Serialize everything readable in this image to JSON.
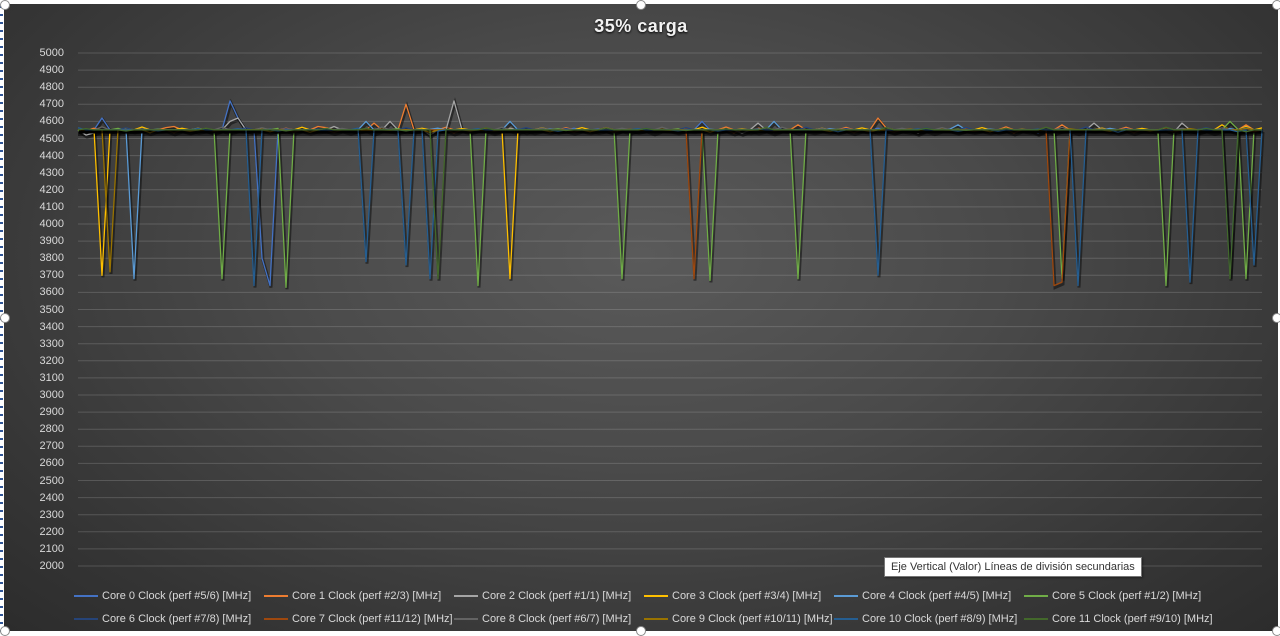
{
  "chart": {
    "title": "35% carga",
    "tooltip": "Eje Vertical (Valor)  Líneas de división secundarias",
    "y_ticks": [
      "5000",
      "4900",
      "4800",
      "4700",
      "4600",
      "4500",
      "4400",
      "4300",
      "4200",
      "4100",
      "4000",
      "3900",
      "3800",
      "3700",
      "3600",
      "3500",
      "3400",
      "3300",
      "3200",
      "3100",
      "3000",
      "2900",
      "2800",
      "2700",
      "2600",
      "2500",
      "2400",
      "2300",
      "2200",
      "2100",
      "2000"
    ],
    "legend": [
      {
        "label": "Core 0 Clock (perf #5/6) [MHz]",
        "color": "#4472c4"
      },
      {
        "label": "Core 1 Clock (perf #2/3) [MHz]",
        "color": "#ed7d31"
      },
      {
        "label": "Core 2 Clock (perf #1/1) [MHz]",
        "color": "#a5a5a5"
      },
      {
        "label": "Core 3 Clock (perf #3/4) [MHz]",
        "color": "#ffc000"
      },
      {
        "label": "Core 4 Clock (perf #4/5) [MHz]",
        "color": "#5b9bd5"
      },
      {
        "label": "Core 5 Clock (perf #1/2) [MHz]",
        "color": "#70ad47"
      },
      {
        "label": "Core 6 Clock (perf #7/8) [MHz]",
        "color": "#264478"
      },
      {
        "label": "Core 7 Clock (perf #11/12) [MHz]",
        "color": "#9e480e"
      },
      {
        "label": "Core 8 Clock (perf #6/7) [MHz]",
        "color": "#636363"
      },
      {
        "label": "Core 9 Clock (perf #10/11) [MHz]",
        "color": "#997300"
      },
      {
        "label": "Core 10 Clock (perf #8/9) [MHz]",
        "color": "#255e91"
      },
      {
        "label": "Core 11 Clock (perf #9/10) [MHz]",
        "color": "#43682b"
      }
    ]
  },
  "chart_data": {
    "type": "line",
    "title": "35% carga",
    "xlabel": "",
    "ylabel": "",
    "ylim": [
      2000,
      5000
    ],
    "y_tick_step": 100,
    "grid": true,
    "legend_position": "bottom",
    "n_points": 149,
    "baseline_mhz": 4550,
    "series": [
      {
        "name": "Core 0 Clock (perf #5/6) [MHz]",
        "events": [
          [
            3,
            4620
          ],
          [
            19,
            4720
          ],
          [
            20,
            4620
          ],
          [
            23,
            3800
          ],
          [
            24,
            3640
          ],
          [
            62,
            4560
          ],
          [
            78,
            4600
          ],
          [
            100,
            4560
          ],
          [
            120,
            4530
          ]
        ]
      },
      {
        "name": "Core 1 Clock (perf #2/3) [MHz]",
        "events": [
          [
            2,
            4560
          ],
          [
            12,
            4570
          ],
          [
            30,
            4570
          ],
          [
            37,
            4590
          ],
          [
            41,
            4700
          ],
          [
            85,
            4560
          ],
          [
            90,
            4580
          ],
          [
            100,
            4620
          ],
          [
            123,
            4580
          ],
          [
            146,
            4580
          ]
        ]
      },
      {
        "name": "Core 2 Clock (perf #1/1) [MHz]",
        "events": [
          [
            1,
            4520
          ],
          [
            19,
            4600
          ],
          [
            20,
            4620
          ],
          [
            32,
            4570
          ],
          [
            39,
            4600
          ],
          [
            47,
            4720
          ],
          [
            54,
            4560
          ],
          [
            85,
            4590
          ],
          [
            105,
            4530
          ],
          [
            127,
            4590
          ],
          [
            138,
            4590
          ]
        ]
      },
      {
        "name": "Core 3 Clock (perf #3/4) [MHz]",
        "events": [
          [
            3,
            3700
          ],
          [
            6,
            4560
          ],
          [
            15,
            4560
          ],
          [
            43,
            4560
          ],
          [
            54,
            3680
          ],
          [
            56,
            4540
          ],
          [
            93,
            4560
          ],
          [
            143,
            4580
          ],
          [
            146,
            4570
          ]
        ]
      },
      {
        "name": "Core 4 Clock (perf #4/5) [MHz]",
        "events": [
          [
            7,
            3680
          ],
          [
            36,
            4600
          ],
          [
            45,
            4560
          ],
          [
            54,
            4600
          ],
          [
            87,
            4600
          ],
          [
            96,
            4550
          ],
          [
            110,
            4580
          ]
        ]
      },
      {
        "name": "Core 5 Clock (perf #1/2) [MHz]",
        "events": [
          [
            18,
            3680
          ],
          [
            26,
            3630
          ],
          [
            50,
            3640
          ],
          [
            68,
            3680
          ],
          [
            79,
            4720
          ],
          [
            79,
            3670
          ],
          [
            90,
            3680
          ],
          [
            123,
            3680
          ],
          [
            136,
            3640
          ],
          [
            146,
            3680
          ],
          [
            144,
            4600
          ]
        ]
      },
      {
        "name": "Core 6 Clock (perf #7/8) [MHz]",
        "events": [
          [
            144,
            3690
          ],
          [
            145,
            4550
          ]
        ]
      },
      {
        "name": "Core 7 Clock (perf #11/12) [MHz]",
        "events": [
          [
            77,
            3680
          ],
          [
            122,
            3640
          ],
          [
            123,
            3660
          ]
        ]
      },
      {
        "name": "Core 8 Clock (perf #6/7) [MHz]",
        "events": [
          [
            44,
            4520
          ],
          [
            83,
            4530
          ]
        ]
      },
      {
        "name": "Core 9 Clock (perf #10/11) [MHz]",
        "events": [
          [
            4,
            3720
          ],
          [
            146,
            4560
          ]
        ]
      },
      {
        "name": "Core 10 Clock (perf #8/9) [MHz]",
        "events": [
          [
            22,
            3640
          ],
          [
            36,
            3780
          ],
          [
            41,
            3760
          ],
          [
            44,
            3680
          ],
          [
            100,
            3700
          ],
          [
            125,
            3640
          ],
          [
            139,
            3660
          ],
          [
            147,
            3760
          ]
        ]
      },
      {
        "name": "Core 11 Clock (perf #9/10) [MHz]",
        "events": [
          [
            45,
            3680
          ],
          [
            144,
            3680
          ],
          [
            146,
            4540
          ]
        ]
      }
    ]
  }
}
